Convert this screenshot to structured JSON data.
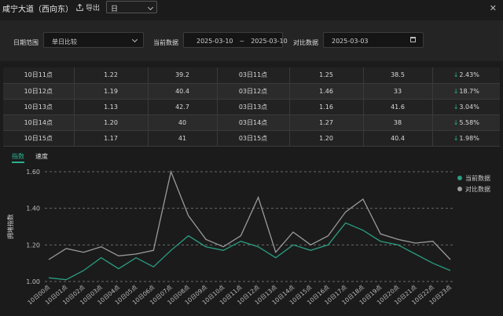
{
  "header": {
    "title": "咸宁大道（西向东）",
    "export_label": "导出",
    "period_select": "日"
  },
  "filters": {
    "range_label": "日期范围",
    "range_value": "单日比较",
    "current_label": "当前数据",
    "current_start": "2025-03-10",
    "current_sep": "~",
    "current_end": "2025-03-10",
    "compare_label": "对比数据",
    "compare_value": "2025-03-03"
  },
  "table": {
    "rows": [
      {
        "time_a": "10日11点",
        "v1": "1.22",
        "v2": "39.2",
        "time_b": "03日11点",
        "v3": "1.25",
        "v4": "38.5",
        "change": "2.43%"
      },
      {
        "time_a": "10日12点",
        "v1": "1.19",
        "v2": "40.4",
        "time_b": "03日12点",
        "v3": "1.46",
        "v4": "33",
        "change": "18.7%"
      },
      {
        "time_a": "10日13点",
        "v1": "1.13",
        "v2": "42.7",
        "time_b": "03日13点",
        "v3": "1.16",
        "v4": "41.6",
        "change": "3.04%"
      },
      {
        "time_a": "10日14点",
        "v1": "1.20",
        "v2": "40",
        "time_b": "03日14点",
        "v3": "1.27",
        "v4": "38",
        "change": "5.58%"
      },
      {
        "time_a": "10日15点",
        "v1": "1.17",
        "v2": "41",
        "time_b": "03日15点",
        "v3": "1.20",
        "v4": "40.4",
        "change": "1.98%"
      }
    ]
  },
  "tabs": [
    {
      "label": "指数",
      "active": true
    },
    {
      "label": "速度",
      "active": false
    }
  ],
  "colors": {
    "accent": "#2ab18e",
    "current_series": "#2a9d82",
    "compare_series": "#9a9a9a"
  },
  "chart_data": {
    "type": "line",
    "ylabel": "拥堵指数",
    "ylim": [
      1.0,
      1.6
    ],
    "yticks": [
      "1.60",
      "1.40",
      "1.20",
      "1.00"
    ],
    "grid": "dashed horizontal",
    "legend": "right",
    "categories": [
      "10日00点",
      "10日01点",
      "10日02点",
      "10日03点",
      "10日04点",
      "10日05点",
      "10日06点",
      "10日07点",
      "10日08点",
      "10日09点",
      "10日10点",
      "10日11点",
      "10日12点",
      "10日13点",
      "10日14点",
      "10日15点",
      "10日16点",
      "10日17点",
      "10日18点",
      "10日19点",
      "10日20点",
      "10日21点",
      "10日22点",
      "10日23点"
    ],
    "series": [
      {
        "name": "当前数据",
        "color": "#2a9d82",
        "values": [
          1.02,
          1.01,
          1.06,
          1.13,
          1.07,
          1.13,
          1.08,
          1.17,
          1.25,
          1.19,
          1.17,
          1.22,
          1.19,
          1.13,
          1.2,
          1.17,
          1.2,
          1.32,
          1.28,
          1.22,
          1.2,
          1.15,
          1.1,
          1.06
        ]
      },
      {
        "name": "对比数据",
        "color": "#9a9a9a",
        "values": [
          1.12,
          1.18,
          1.16,
          1.19,
          1.14,
          1.15,
          1.17,
          1.6,
          1.36,
          1.23,
          1.19,
          1.25,
          1.46,
          1.16,
          1.27,
          1.2,
          1.25,
          1.38,
          1.45,
          1.26,
          1.23,
          1.21,
          1.22,
          1.12
        ]
      }
    ]
  }
}
